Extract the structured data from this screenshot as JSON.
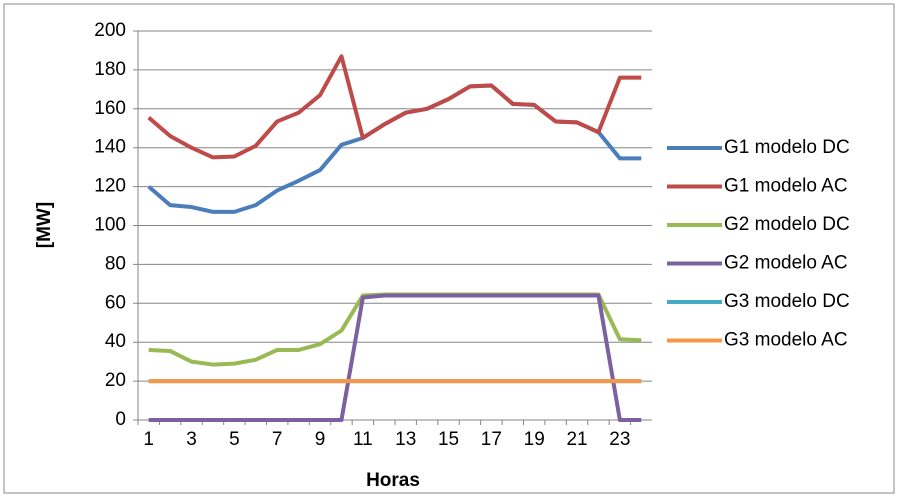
{
  "chart_data": {
    "type": "line",
    "xlabel": "Horas",
    "ylabel": "[MW]",
    "categories": [
      "1",
      null,
      "3",
      null,
      "5",
      null,
      "7",
      null,
      "9",
      null,
      "11",
      null,
      "13",
      null,
      "15",
      null,
      "17",
      null,
      "19",
      null,
      "21",
      null,
      "23",
      null
    ],
    "series": [
      {
        "name": "G1 modelo DC",
        "color": "#4a7ebb",
        "values": [
          120,
          110.5,
          109.5,
          107,
          107,
          110.5,
          118,
          123,
          128.5,
          141.5,
          145,
          152,
          158,
          160,
          165,
          171.5,
          172,
          162.5,
          162,
          153.5,
          153,
          148,
          134.5,
          134.5
        ]
      },
      {
        "name": "G1 modelo AC",
        "color": "#be4b48",
        "values": [
          155.5,
          146,
          140,
          135,
          135.5,
          141,
          153.5,
          158,
          167,
          187,
          145,
          152,
          158,
          160,
          165,
          171.5,
          172,
          162.5,
          162,
          153.5,
          153,
          148,
          176,
          176
        ]
      },
      {
        "name": "G2 modelo DC",
        "color": "#98b954",
        "values": [
          36,
          35.5,
          30,
          28.5,
          29,
          31,
          36,
          36,
          39,
          46,
          64,
          64.5,
          64.5,
          64.5,
          64.5,
          64.5,
          64.5,
          64.5,
          64.5,
          64.5,
          64.5,
          64.5,
          41.5,
          41
        ]
      },
      {
        "name": "G2 modelo AC",
        "color": "#7d60a0",
        "values": [
          0,
          0,
          0,
          0,
          0,
          0,
          0,
          0,
          0,
          0,
          63,
          64,
          64,
          64,
          64,
          64,
          64,
          64,
          64,
          64,
          64,
          64,
          0,
          0
        ]
      },
      {
        "name": "G3 modelo DC",
        "color": "#46aac5",
        "values": [
          20,
          20,
          20,
          20,
          20,
          20,
          20,
          20,
          20,
          20,
          20,
          20,
          20,
          20,
          20,
          20,
          20,
          20,
          20,
          20,
          20,
          20,
          20,
          20
        ]
      },
      {
        "name": "G3 modelo AC",
        "color": "#f79646",
        "values": [
          20,
          20,
          20,
          20,
          20,
          20,
          20,
          20,
          20,
          20,
          20,
          20,
          20,
          20,
          20,
          20,
          20,
          20,
          20,
          20,
          20,
          20,
          20,
          20
        ]
      }
    ],
    "ylim": [
      0,
      200
    ],
    "yticks": [
      0,
      20,
      40,
      60,
      80,
      100,
      120,
      140,
      160,
      180,
      200
    ],
    "grid": true,
    "legend": "right"
  }
}
